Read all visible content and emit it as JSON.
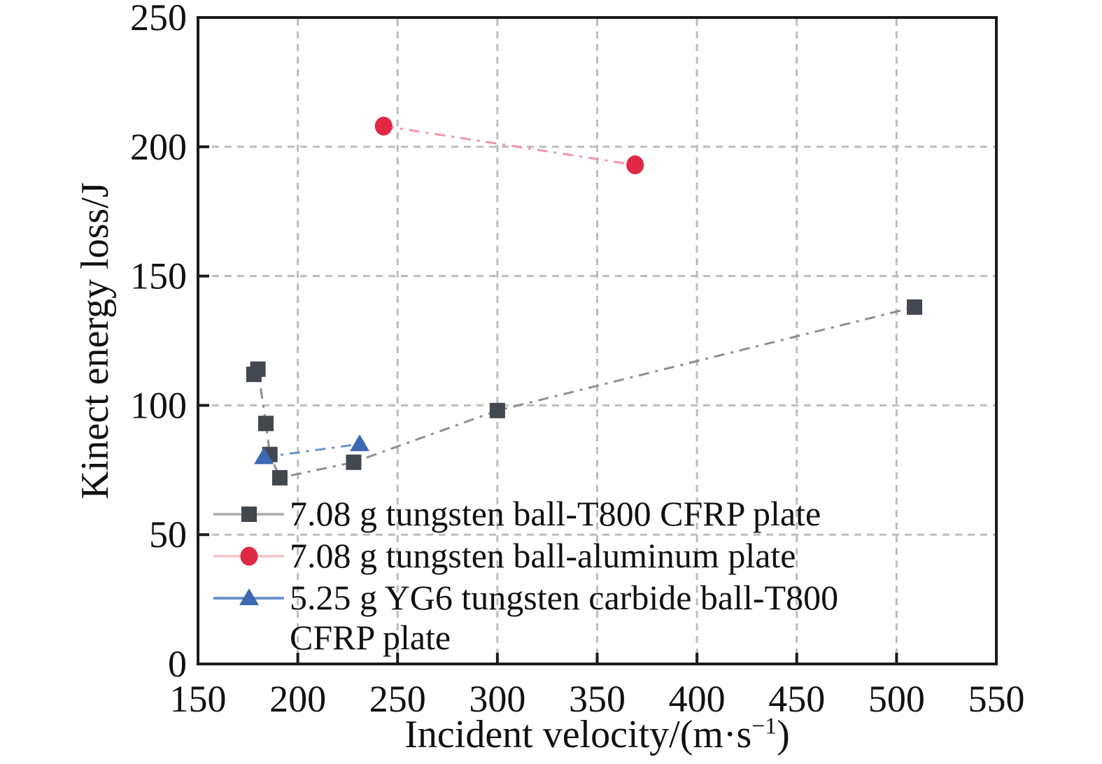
{
  "chart_data": {
    "type": "scatter",
    "title": "",
    "xlabel": {
      "text": "Incident velocity/(m·s",
      "sup": "−1",
      "close": ")"
    },
    "ylabel": "Kinect energy loss/J",
    "xlim": [
      150,
      550
    ],
    "ylim": [
      0,
      250
    ],
    "xticks": [
      150,
      200,
      250,
      300,
      350,
      400,
      450,
      500,
      550
    ],
    "yticks": [
      0,
      50,
      100,
      150,
      200,
      250
    ],
    "grid": {
      "show": true,
      "style": "dashed",
      "color": "#bdbdbd"
    },
    "axis_color": "#1a1a1a",
    "tick_label_color": "#111111",
    "legend_position": "lower-left-inside",
    "series": [
      {
        "id": "tungsten-ball-t800-cfrp",
        "label": "7.08 g tungsten ball-T800 CFRP plate",
        "marker": "square",
        "marker_color": "#43474f",
        "line_color": "#8f8f8f",
        "legend_line_color": "#b3b3b3",
        "line_style": "dash-dot",
        "points": [
          [
            178,
            112
          ],
          [
            180,
            114
          ],
          [
            184,
            93
          ],
          [
            186,
            81
          ],
          [
            191,
            72
          ],
          [
            228,
            78
          ],
          [
            300,
            98
          ],
          [
            509,
            138
          ]
        ]
      },
      {
        "id": "tungsten-ball-aluminum",
        "label": "7.08 g tungsten ball-aluminum plate",
        "marker": "circle",
        "marker_color": "#e02844",
        "line_color": "#ef96a6",
        "legend_line_color": "#f4c6ce",
        "line_style": "dash-dot",
        "points": [
          [
            243,
            208
          ],
          [
            369,
            193
          ]
        ]
      },
      {
        "id": "yg6-carbide-ball-t800-cfrp",
        "label": "5.25 g YG6 tungsten carbide ball-T800",
        "label_line2": "CFRP plate",
        "marker": "triangle",
        "marker_color": "#3c69b2",
        "line_color": "#6d93cd",
        "legend_line_color": "#6d93cd",
        "line_style": "dash-dot",
        "points": [
          [
            183,
            80
          ],
          [
            231,
            85
          ]
        ]
      }
    ]
  }
}
